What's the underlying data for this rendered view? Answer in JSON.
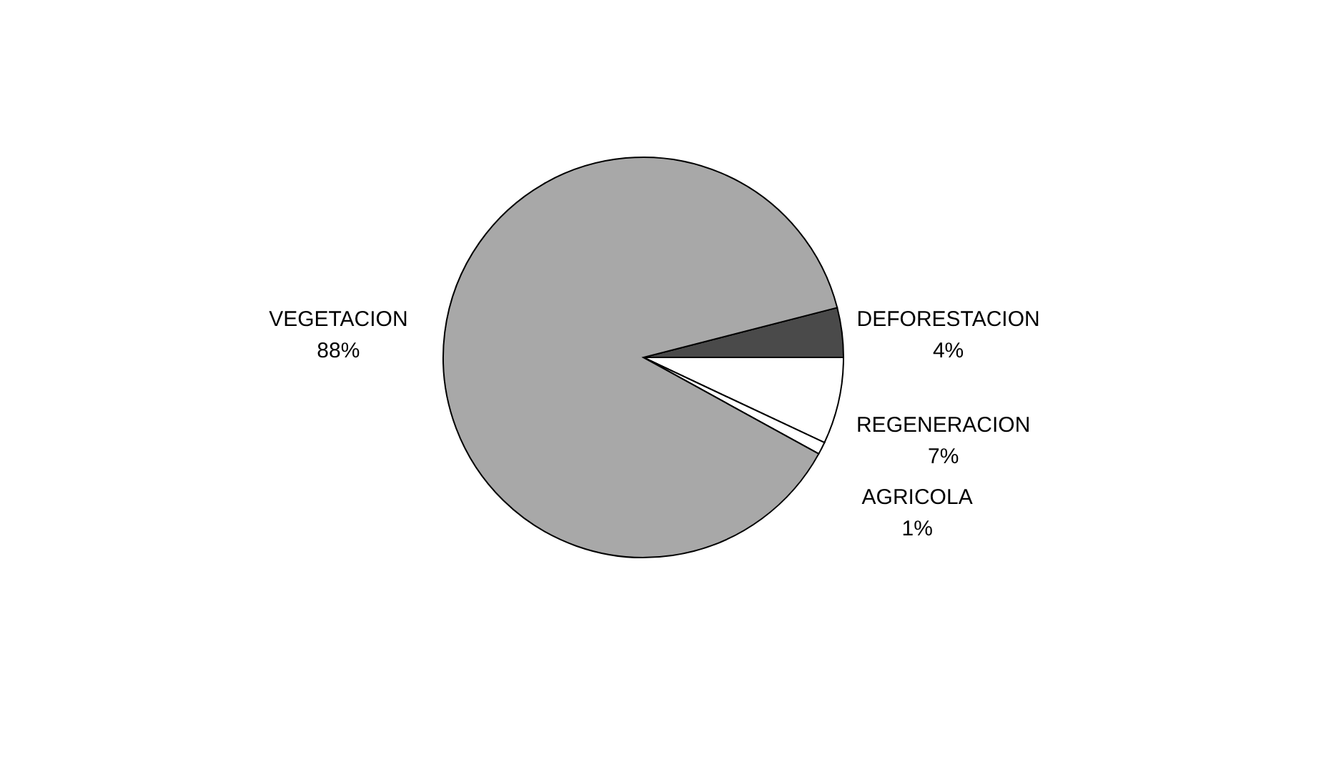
{
  "chart_data": {
    "type": "pie",
    "categories": [
      "DEFORESTACION",
      "REGENERACION",
      "AGRICOLA",
      "VEGETACION"
    ],
    "values": [
      4,
      7,
      1,
      88
    ],
    "value_labels": [
      "4%",
      "7%",
      "1%",
      "88%"
    ],
    "colors": [
      "#4a4a4a",
      "#ffffff",
      "#ffffff",
      "#a8a8a8"
    ],
    "legend": false
  }
}
